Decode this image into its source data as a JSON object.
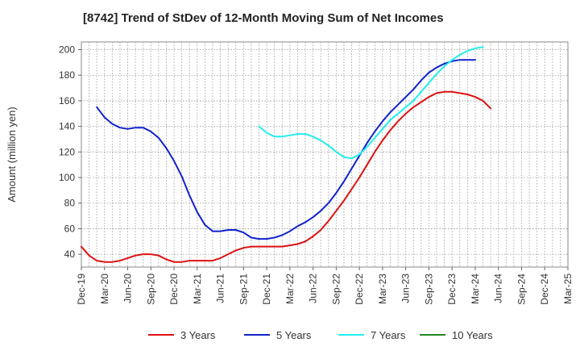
{
  "chart_data": {
    "type": "line",
    "title": "[8742]  Trend of StDev of 12-Month Moving Sum of Net Incomes",
    "ylabel": "Amount (million yen)",
    "xlabel": "",
    "ylim": [
      30,
      206
    ],
    "y_ticks": [
      40,
      60,
      80,
      100,
      120,
      140,
      160,
      180,
      200
    ],
    "x_tick_labels": [
      "Dec-19",
      "Mar-20",
      "Jun-20",
      "Sep-20",
      "Dec-20",
      "Mar-21",
      "Jun-21",
      "Sep-21",
      "Dec-21",
      "Mar-22",
      "Jun-22",
      "Sep-22",
      "Dec-22",
      "Mar-23",
      "Jun-23",
      "Sep-23",
      "Dec-23",
      "Mar-24",
      "Jun-24",
      "Sep-24",
      "Dec-24",
      "Mar-25"
    ],
    "grid": true,
    "legend_position": "bottom",
    "series": [
      {
        "name": "3 Years",
        "color": "#dd1111",
        "start_index": 0,
        "values": [
          46,
          39,
          35,
          34,
          34,
          35,
          37,
          39,
          40,
          40,
          39,
          36,
          34,
          34,
          35,
          35,
          35,
          35,
          37,
          40,
          43,
          45,
          46,
          46,
          46,
          46,
          46,
          47,
          48,
          50,
          54,
          59,
          66,
          74,
          82,
          91,
          100,
          110,
          120,
          129,
          137,
          144,
          150,
          155,
          159,
          163,
          166,
          167,
          167,
          166,
          165,
          163,
          160,
          154
        ]
      },
      {
        "name": "5 Years",
        "color": "#1122cc",
        "start_index": 2,
        "values": [
          155,
          147,
          142,
          139,
          138,
          139,
          139,
          136,
          131,
          123,
          113,
          101,
          86,
          73,
          63,
          58,
          58,
          59,
          59,
          57,
          53,
          52,
          52,
          53,
          55,
          58,
          62,
          65,
          69,
          74,
          80,
          88,
          97,
          107,
          117,
          127,
          136,
          144,
          151,
          157,
          163,
          169,
          176,
          182,
          186,
          189,
          191,
          192,
          192,
          192
        ]
      },
      {
        "name": "7 Years",
        "color": "#22eeee",
        "start_index": 23,
        "values": [
          140,
          135,
          132,
          132,
          133,
          134,
          134,
          132,
          129,
          125,
          120,
          116,
          115,
          118,
          124,
          131,
          138,
          145,
          150,
          155,
          160,
          167,
          174,
          181,
          187,
          192,
          196,
          199,
          201,
          202
        ]
      },
      {
        "name": "10 Years",
        "color": "#228822",
        "start_index": 0,
        "values": []
      }
    ]
  }
}
